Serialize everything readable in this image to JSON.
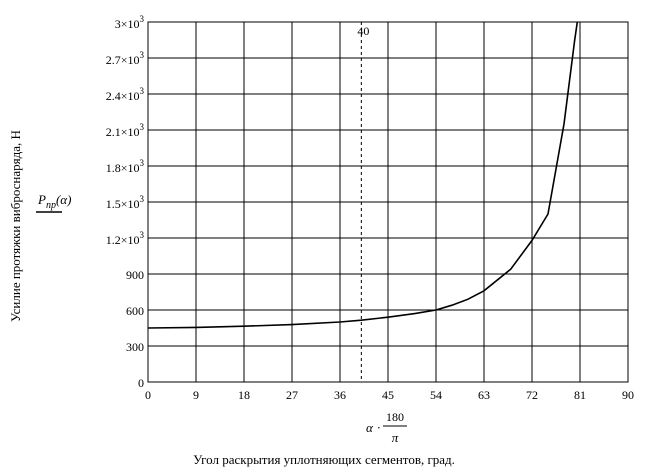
{
  "chart_data": {
    "type": "line",
    "title": "",
    "xlabel": "Угол раскрытия уплотняющих сегментов, град.",
    "ylabel": "Усилие протяжки виброснаряда, Н",
    "x_expression": {
      "var": "α",
      "num": "180",
      "den": "π"
    },
    "y_expression": {
      "func": "P",
      "sub": "пр",
      "arg": "(α)"
    },
    "xlim": [
      0,
      90
    ],
    "ylim": [
      0,
      3000
    ],
    "x_ticks": [
      {
        "value": 0,
        "label": "0"
      },
      {
        "value": 9,
        "label": "9"
      },
      {
        "value": 18,
        "label": "18"
      },
      {
        "value": 27,
        "label": "27"
      },
      {
        "value": 36,
        "label": "36"
      },
      {
        "value": 45,
        "label": "45"
      },
      {
        "value": 54,
        "label": "54"
      },
      {
        "value": 63,
        "label": "63"
      },
      {
        "value": 72,
        "label": "72"
      },
      {
        "value": 81,
        "label": "81"
      },
      {
        "value": 90,
        "label": "90"
      }
    ],
    "y_ticks": [
      {
        "value": 0,
        "label": "0"
      },
      {
        "value": 300,
        "label": "300"
      },
      {
        "value": 600,
        "label": "600"
      },
      {
        "value": 900,
        "label": "900"
      },
      {
        "value": 1200,
        "label": "1.2×10",
        "exp": "3"
      },
      {
        "value": 1500,
        "label": "1.5×10",
        "exp": "3"
      },
      {
        "value": 1800,
        "label": "1.8×10",
        "exp": "3"
      },
      {
        "value": 2100,
        "label": "2.1×10",
        "exp": "3"
      },
      {
        "value": 2400,
        "label": "2.4×10",
        "exp": "3"
      },
      {
        "value": 2700,
        "label": "2.7×10",
        "exp": "3"
      },
      {
        "value": 3000,
        "label": "3×10",
        "exp": "3"
      }
    ],
    "grid": true,
    "marker_line": {
      "x": 40,
      "label": "40",
      "style": "dashed"
    },
    "series": [
      {
        "color": "#000000",
        "points": [
          [
            0,
            450
          ],
          [
            9,
            455
          ],
          [
            18,
            465
          ],
          [
            27,
            478
          ],
          [
            36,
            500
          ],
          [
            40,
            515
          ],
          [
            45,
            540
          ],
          [
            50,
            570
          ],
          [
            54,
            600
          ],
          [
            57,
            640
          ],
          [
            60,
            690
          ],
          [
            63,
            760
          ],
          [
            68,
            940
          ],
          [
            72,
            1180
          ],
          [
            75,
            1400
          ],
          [
            78,
            2150
          ],
          [
            80,
            2850
          ],
          [
            80.5,
            3000
          ]
        ]
      }
    ]
  }
}
